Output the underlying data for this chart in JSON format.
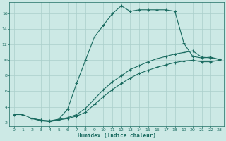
{
  "xlabel": "Humidex (Indice chaleur)",
  "bg_color": "#cce9e5",
  "grid_color": "#aacfcb",
  "line_color": "#1a6b60",
  "xlim": [
    -0.5,
    23.5
  ],
  "ylim": [
    1.5,
    17.5
  ],
  "xticks": [
    0,
    1,
    2,
    3,
    4,
    5,
    6,
    7,
    8,
    9,
    10,
    11,
    12,
    13,
    14,
    15,
    16,
    17,
    18,
    19,
    20,
    21,
    22,
    23
  ],
  "yticks": [
    2,
    4,
    6,
    8,
    10,
    12,
    14,
    16
  ],
  "line1_x": [
    0,
    1,
    2,
    3,
    4,
    5,
    6,
    7,
    8,
    9,
    10,
    11,
    12,
    13,
    14,
    15,
    16,
    17,
    18,
    19,
    20,
    21,
    22,
    23
  ],
  "line1_y": [
    3.0,
    3.0,
    2.5,
    2.3,
    2.2,
    2.4,
    3.7,
    7.0,
    10.0,
    13.0,
    14.5,
    16.0,
    17.0,
    16.3,
    16.5,
    16.5,
    16.5,
    16.5,
    16.3,
    12.2,
    10.5,
    10.3,
    10.4,
    10.1
  ],
  "line2_x": [
    2,
    3,
    4,
    5,
    6,
    7,
    8,
    9,
    10,
    11,
    12,
    13,
    14,
    15,
    16,
    17,
    18,
    19,
    20,
    21,
    22,
    23
  ],
  "line2_y": [
    2.5,
    2.3,
    2.1,
    2.4,
    2.6,
    3.0,
    3.8,
    5.0,
    6.2,
    7.2,
    8.0,
    8.8,
    9.3,
    9.8,
    10.2,
    10.5,
    10.8,
    11.0,
    11.2,
    10.4,
    10.3,
    10.1
  ],
  "line3_x": [
    2,
    3,
    4,
    5,
    6,
    7,
    8,
    9,
    10,
    11,
    12,
    13,
    14,
    15,
    16,
    17,
    18,
    19,
    20,
    21,
    22,
    23
  ],
  "line3_y": [
    2.5,
    2.2,
    2.1,
    2.3,
    2.5,
    2.8,
    3.3,
    4.3,
    5.3,
    6.2,
    7.0,
    7.7,
    8.3,
    8.7,
    9.1,
    9.4,
    9.7,
    9.9,
    10.0,
    9.8,
    9.8,
    10.0
  ]
}
